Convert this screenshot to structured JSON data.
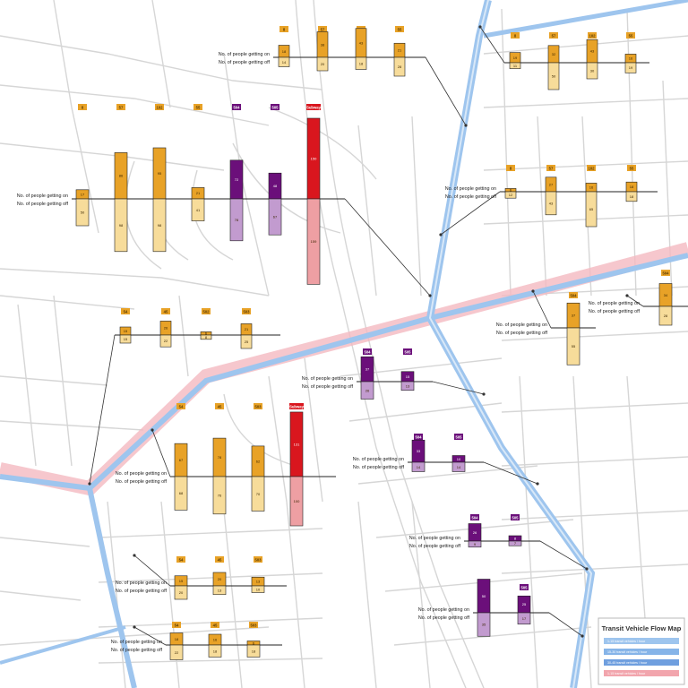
{
  "legend": {
    "title": "Transit Vehicle Flow Map",
    "items": [
      {
        "label": "1-15 transit vehicles / hour",
        "color": "#9ec5ee"
      },
      {
        "label": "15-30 transit vehicles / hour",
        "color": "#86b4e8"
      },
      {
        "label": "30-45 transit vehicles / hour",
        "color": "#6f9fdf"
      },
      {
        "label": "1-15 transit vehicles / hour",
        "color": "#f2a5ad"
      }
    ]
  },
  "labels": {
    "on": "No. of people getting on",
    "off": "No. of people getting off"
  },
  "colors": {
    "orange_on": "#e8a227",
    "orange_off": "#f7dc9a",
    "purple_on": "#6b0f7a",
    "purple_off": "#c29bcf",
    "red_on": "#d9161e",
    "red_off": "#ee9fa3",
    "corridor_blue": "#9ec5ee",
    "corridor_pink": "#f4b9c0",
    "street": "#d6d6d6"
  },
  "stops": [
    {
      "id": "stop-top-center",
      "routes": [
        {
          "route": "8",
          "color": "orange",
          "on": "18",
          "off": "14"
        },
        {
          "route": "57",
          "color": "orange",
          "on": "38",
          "off": "20"
        },
        {
          "route": "102",
          "color": "orange",
          "on": "43",
          "off": "18"
        },
        {
          "route": "55",
          "color": "orange",
          "on": "21",
          "off": "28"
        }
      ]
    },
    {
      "id": "stop-top-right",
      "routes": [
        {
          "route": "8",
          "color": "orange",
          "on": "19",
          "off": "11"
        },
        {
          "route": "57",
          "color": "orange",
          "on": "32",
          "off": "50"
        },
        {
          "route": "102",
          "color": "orange",
          "on": "43",
          "off": "30"
        },
        {
          "route": "55",
          "color": "orange",
          "on": "16",
          "off": "19"
        }
      ]
    },
    {
      "id": "stop-big-left",
      "routes": [
        {
          "route": "8",
          "color": "orange",
          "on": "17",
          "off": "50"
        },
        {
          "route": "57",
          "color": "orange",
          "on": "86",
          "off": "98"
        },
        {
          "route": "102",
          "color": "orange",
          "on": "95",
          "off": "98"
        },
        {
          "route": "55",
          "color": "orange",
          "on": "21",
          "off": "41"
        },
        {
          "route": "504",
          "color": "purple",
          "on": "72",
          "off": "78"
        },
        {
          "route": "505",
          "color": "purple",
          "on": "48",
          "off": "67"
        },
        {
          "route": "Subway",
          "color": "red",
          "on": "150",
          "off": "159"
        }
      ]
    },
    {
      "id": "stop-right-mid",
      "routes": [
        {
          "route": "8",
          "color": "orange",
          "on": "6",
          "off": "12"
        },
        {
          "route": "57",
          "color": "orange",
          "on": "27",
          "off": "43"
        },
        {
          "route": "102",
          "color": "orange",
          "on": "16",
          "off": "65"
        },
        {
          "route": "55",
          "color": "orange",
          "on": "18",
          "off": "18"
        }
      ]
    },
    {
      "id": "stop-right-504",
      "routes": [
        {
          "route": "504",
          "color": "orange",
          "on": "37",
          "off": "55"
        }
      ]
    },
    {
      "id": "stop-far-right",
      "routes": [
        {
          "route": "504",
          "color": "orange",
          "on": "34",
          "off": "28"
        }
      ]
    },
    {
      "id": "stop-mid-left",
      "routes": [
        {
          "route": "54",
          "color": "orange",
          "on": "15",
          "off": "15"
        },
        {
          "route": "45",
          "color": "orange",
          "on": "26",
          "off": "22"
        },
        {
          "route": "502",
          "color": "orange",
          "on": "6",
          "off": "8"
        },
        {
          "route": "503",
          "color": "orange",
          "on": "21",
          "off": "25"
        }
      ]
    },
    {
      "id": "stop-center-purple",
      "routes": [
        {
          "route": "504",
          "color": "purple",
          "on": "37",
          "off": "26"
        },
        {
          "route": "505",
          "color": "purple",
          "on": "15",
          "off": "13"
        }
      ]
    },
    {
      "id": "stop-center-big",
      "routes": [
        {
          "route": "54",
          "color": "orange",
          "on": "67",
          "off": "68"
        },
        {
          "route": "45",
          "color": "orange",
          "on": "78",
          "off": "76"
        },
        {
          "route": "503",
          "color": "orange",
          "on": "62",
          "off": "70"
        },
        {
          "route": "Subway",
          "color": "red",
          "on": "131",
          "off": "100"
        }
      ]
    },
    {
      "id": "stop-purple-2",
      "routes": [
        {
          "route": "504",
          "color": "purple",
          "on": "33",
          "off": "14"
        },
        {
          "route": "505",
          "color": "purple",
          "on": "10",
          "off": "14"
        }
      ]
    },
    {
      "id": "stop-purple-3",
      "routes": [
        {
          "route": "504",
          "color": "purple",
          "on": "26",
          "off": "9"
        },
        {
          "route": "505",
          "color": "purple",
          "on": "8",
          "off": "7"
        }
      ]
    },
    {
      "id": "stop-purple-4",
      "routes": [
        {
          "route": "504",
          "color": "purple",
          "on": "50",
          "off": "35"
        },
        {
          "route": "505",
          "color": "purple",
          "on": "25",
          "off": "17"
        }
      ]
    },
    {
      "id": "stop-bottom-left-1",
      "routes": [
        {
          "route": "54",
          "color": "orange",
          "on": "15",
          "off": "20"
        },
        {
          "route": "45",
          "color": "orange",
          "on": "20",
          "off": "13"
        },
        {
          "route": "503",
          "color": "orange",
          "on": "13",
          "off": "10"
        }
      ]
    },
    {
      "id": "stop-bottom-left-2",
      "routes": [
        {
          "route": "54",
          "color": "orange",
          "on": "18",
          "off": "22"
        },
        {
          "route": "45",
          "color": "orange",
          "on": "16",
          "off": "18"
        },
        {
          "route": "503",
          "color": "orange",
          "on": "6",
          "off": "18"
        }
      ]
    }
  ]
}
